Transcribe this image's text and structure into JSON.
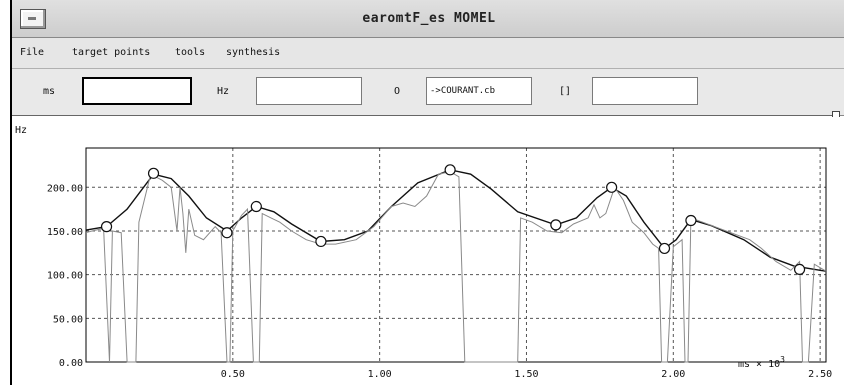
{
  "window": {
    "title": "earomtF_es MOMEL"
  },
  "menu": {
    "items": [
      "File",
      "target points",
      "tools",
      "synthesis"
    ]
  },
  "toolbar": {
    "ms_label": "ms",
    "ms_value": "",
    "hz_label": "Hz",
    "hz_value": "",
    "o_label": "O",
    "file_value": "->COURANT.cb",
    "brackets_label": "[]",
    "brackets_value": ""
  },
  "chart_data": {
    "type": "line",
    "ylabel": "Hz",
    "xlabel": "ms × 10^3",
    "xlim": [
      0.0,
      2.52
    ],
    "ylim": [
      0,
      245
    ],
    "grid": true,
    "x_ticks": [
      0.5,
      1.0,
      1.5,
      2.0,
      2.5
    ],
    "x_tick_labels": [
      "0.50",
      "1.00",
      "1.50",
      "2.00",
      "2.50"
    ],
    "y_ticks": [
      0,
      50,
      100,
      150,
      200
    ],
    "y_tick_labels": [
      "0.00",
      "50.00",
      "100.00",
      "150.00",
      "200.00"
    ],
    "axis_unit_text": "ms × 10",
    "axis_unit_exp": "3",
    "series": [
      {
        "role": "momel_curve",
        "values": [
          [
            0.0,
            151
          ],
          [
            0.07,
            155
          ],
          [
            0.14,
            175
          ],
          [
            0.23,
            215
          ],
          [
            0.29,
            210
          ],
          [
            0.35,
            190
          ],
          [
            0.41,
            165
          ],
          [
            0.48,
            150
          ],
          [
            0.53,
            165
          ],
          [
            0.58,
            178
          ],
          [
            0.64,
            172
          ],
          [
            0.7,
            158
          ],
          [
            0.8,
            138
          ],
          [
            0.88,
            140
          ],
          [
            0.96,
            150
          ],
          [
            1.04,
            178
          ],
          [
            1.13,
            205
          ],
          [
            1.24,
            220
          ],
          [
            1.31,
            215
          ],
          [
            1.38,
            198
          ],
          [
            1.47,
            172
          ],
          [
            1.6,
            157
          ],
          [
            1.67,
            165
          ],
          [
            1.74,
            188
          ],
          [
            1.79,
            200
          ],
          [
            1.84,
            190
          ],
          [
            1.9,
            160
          ],
          [
            1.97,
            130
          ],
          [
            2.01,
            140
          ],
          [
            2.06,
            163
          ],
          [
            2.13,
            156
          ],
          [
            2.24,
            140
          ],
          [
            2.33,
            120
          ],
          [
            2.41,
            110
          ],
          [
            2.5,
            105
          ],
          [
            2.52,
            104
          ]
        ]
      },
      {
        "role": "f0_raw",
        "values": [
          [
            0.0,
            148
          ],
          [
            0.02,
            150
          ],
          [
            0.06,
            153
          ],
          [
            0.08,
            0
          ],
          [
            0.09,
            150
          ],
          [
            0.12,
            148
          ],
          [
            0.14,
            0
          ],
          [
            0.17,
            0
          ],
          [
            0.18,
            160
          ],
          [
            0.22,
            215
          ],
          [
            0.26,
            208
          ],
          [
            0.29,
            200
          ],
          [
            0.31,
            150
          ],
          [
            0.32,
            200
          ],
          [
            0.33,
            170
          ],
          [
            0.34,
            125
          ],
          [
            0.35,
            175
          ],
          [
            0.37,
            145
          ],
          [
            0.4,
            140
          ],
          [
            0.44,
            155
          ],
          [
            0.46,
            148
          ],
          [
            0.48,
            0
          ],
          [
            0.49,
            0
          ],
          [
            0.5,
            150
          ],
          [
            0.53,
            168
          ],
          [
            0.55,
            175
          ],
          [
            0.57,
            0
          ],
          [
            0.59,
            0
          ],
          [
            0.6,
            170
          ],
          [
            0.63,
            165
          ],
          [
            0.66,
            160
          ],
          [
            0.7,
            150
          ],
          [
            0.75,
            140
          ],
          [
            0.8,
            135
          ],
          [
            0.85,
            135
          ],
          [
            0.92,
            140
          ],
          [
            0.98,
            155
          ],
          [
            1.04,
            178
          ],
          [
            1.08,
            182
          ],
          [
            1.12,
            178
          ],
          [
            1.16,
            190
          ],
          [
            1.2,
            215
          ],
          [
            1.24,
            218
          ],
          [
            1.27,
            212
          ],
          [
            1.29,
            0
          ],
          [
            1.3,
            0
          ],
          [
            1.33,
            0
          ],
          [
            1.36,
            0
          ],
          [
            1.4,
            0
          ],
          [
            1.44,
            0
          ],
          [
            1.47,
            0
          ],
          [
            1.48,
            165
          ],
          [
            1.52,
            160
          ],
          [
            1.57,
            150
          ],
          [
            1.62,
            148
          ],
          [
            1.66,
            158
          ],
          [
            1.71,
            165
          ],
          [
            1.73,
            180
          ],
          [
            1.75,
            165
          ],
          [
            1.77,
            170
          ],
          [
            1.8,
            200
          ],
          [
            1.83,
            185
          ],
          [
            1.86,
            160
          ],
          [
            1.9,
            148
          ],
          [
            1.93,
            135
          ],
          [
            1.95,
            130
          ],
          [
            1.96,
            0
          ],
          [
            1.98,
            0
          ],
          [
            2.0,
            132
          ],
          [
            2.03,
            140
          ],
          [
            2.04,
            0
          ],
          [
            2.05,
            0
          ],
          [
            2.06,
            165
          ],
          [
            2.1,
            160
          ],
          [
            2.18,
            150
          ],
          [
            2.26,
            140
          ],
          [
            2.3,
            130
          ],
          [
            2.35,
            115
          ],
          [
            2.4,
            105
          ],
          [
            2.43,
            115
          ],
          [
            2.44,
            0
          ],
          [
            2.46,
            0
          ],
          [
            2.48,
            112
          ],
          [
            2.52,
            104
          ]
        ]
      }
    ],
    "target_points": [
      [
        0.07,
        155
      ],
      [
        0.23,
        216
      ],
      [
        0.48,
        148
      ],
      [
        0.58,
        178
      ],
      [
        0.8,
        138
      ],
      [
        1.24,
        220
      ],
      [
        1.6,
        157
      ],
      [
        1.79,
        200
      ],
      [
        1.97,
        130
      ],
      [
        2.06,
        162
      ],
      [
        2.43,
        106
      ]
    ]
  }
}
